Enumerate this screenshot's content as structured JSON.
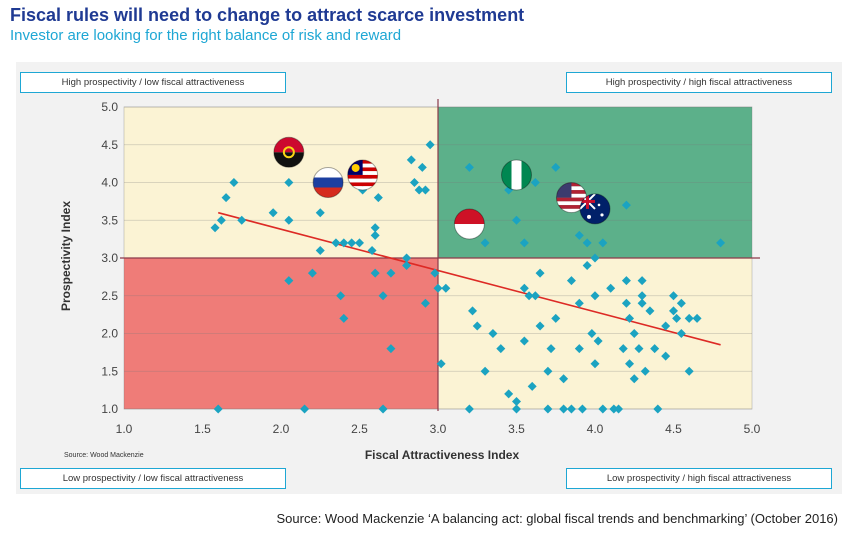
{
  "header": {
    "title": "Fiscal rules will need to change to attract scarce investment",
    "subtitle": "Investor are looking for the right balance of risk and reward"
  },
  "quadrants": {
    "top_left": "High prospectivity / low fiscal attractiveness",
    "top_right": "High prospectivity / high fiscal attractiveness",
    "bottom_left": "Low prospectivity / low fiscal attractiveness",
    "bottom_right": "Low prospectivity / high fiscal attractiveness"
  },
  "source_small": "Source: Wood Mackenzie",
  "source_note": "Source: Wood Mackenzie ‘A balancing act: global fiscal trends and benchmarking’ (October 2016)",
  "colors": {
    "top_left_fill": "#fbf3d4",
    "top_right_fill": "#5cb08a",
    "bottom_left_fill": "#ef7c78",
    "bottom_right_fill": "#fbf3d4",
    "points": "#1ba3c1",
    "trend": "#dd2a25",
    "divider": "#8c3a4a",
    "axis_label": "#333333"
  },
  "chart_data": {
    "type": "scatter",
    "xlabel": "Fiscal Attractiveness Index",
    "ylabel": "Prospectivity Index",
    "xlim": [
      1.0,
      5.0
    ],
    "ylim": [
      1.0,
      5.0
    ],
    "xticks": [
      "1.0",
      "1.5",
      "2.0",
      "2.5",
      "3.0",
      "3.5",
      "4.0",
      "4.5",
      "5.0"
    ],
    "yticks": [
      "1.0",
      "1.5",
      "2.0",
      "2.5",
      "3.0",
      "3.5",
      "4.0",
      "4.5",
      "5.0"
    ],
    "quadrant_split": {
      "x": 3.0,
      "y": 3.0
    },
    "trendline": [
      [
        1.6,
        3.6
      ],
      [
        4.8,
        1.85
      ]
    ],
    "flags": [
      {
        "icon": "angola-flag-icon",
        "x": 2.05,
        "y": 4.4
      },
      {
        "icon": "russia-flag-icon",
        "x": 2.3,
        "y": 4.0
      },
      {
        "icon": "malaysia-flag-icon",
        "x": 2.52,
        "y": 4.1
      },
      {
        "icon": "indonesia-flag-icon",
        "x": 3.2,
        "y": 3.45
      },
      {
        "icon": "nigeria-flag-icon",
        "x": 3.5,
        "y": 4.1
      },
      {
        "icon": "usa-flag-icon",
        "x": 3.85,
        "y": 3.8
      },
      {
        "icon": "australia-flag-icon",
        "x": 4.0,
        "y": 3.65
      }
    ],
    "points": [
      [
        1.6,
        1.0
      ],
      [
        1.58,
        3.4
      ],
      [
        1.62,
        3.5
      ],
      [
        1.65,
        3.8
      ],
      [
        1.7,
        4.0
      ],
      [
        1.75,
        3.5
      ],
      [
        1.95,
        3.6
      ],
      [
        2.05,
        3.5
      ],
      [
        2.05,
        2.7
      ],
      [
        2.05,
        4.0
      ],
      [
        2.15,
        1.0
      ],
      [
        2.2,
        2.8
      ],
      [
        2.25,
        3.6
      ],
      [
        2.25,
        3.1
      ],
      [
        2.3,
        3.9
      ],
      [
        2.35,
        3.2
      ],
      [
        2.38,
        2.5
      ],
      [
        2.4,
        2.2
      ],
      [
        2.4,
        3.2
      ],
      [
        2.45,
        3.2
      ],
      [
        2.5,
        3.2
      ],
      [
        2.52,
        3.9
      ],
      [
        2.55,
        4.05
      ],
      [
        2.58,
        3.1
      ],
      [
        2.6,
        3.4
      ],
      [
        2.6,
        3.3
      ],
      [
        2.6,
        2.8
      ],
      [
        2.62,
        3.8
      ],
      [
        2.65,
        2.5
      ],
      [
        2.65,
        1.0
      ],
      [
        2.7,
        2.8
      ],
      [
        2.7,
        1.8
      ],
      [
        2.8,
        3.0
      ],
      [
        2.8,
        2.9
      ],
      [
        2.83,
        4.3
      ],
      [
        2.85,
        4.0
      ],
      [
        2.88,
        3.9
      ],
      [
        2.9,
        4.2
      ],
      [
        2.92,
        2.4
      ],
      [
        2.92,
        3.9
      ],
      [
        2.95,
        4.5
      ],
      [
        2.98,
        2.8
      ],
      [
        3.0,
        2.6
      ],
      [
        3.02,
        1.6
      ],
      [
        3.05,
        2.6
      ],
      [
        3.2,
        4.2
      ],
      [
        3.2,
        1.0
      ],
      [
        3.22,
        2.3
      ],
      [
        3.25,
        2.1
      ],
      [
        3.3,
        1.5
      ],
      [
        3.3,
        3.2
      ],
      [
        3.35,
        2.0
      ],
      [
        3.4,
        1.8
      ],
      [
        3.45,
        1.2
      ],
      [
        3.45,
        3.9
      ],
      [
        3.5,
        1.0
      ],
      [
        3.5,
        1.1
      ],
      [
        3.5,
        3.5
      ],
      [
        3.55,
        2.6
      ],
      [
        3.55,
        1.9
      ],
      [
        3.55,
        3.2
      ],
      [
        3.58,
        2.5
      ],
      [
        3.6,
        1.3
      ],
      [
        3.62,
        4.0
      ],
      [
        3.62,
        2.5
      ],
      [
        3.65,
        2.8
      ],
      [
        3.65,
        2.1
      ],
      [
        3.7,
        1.0
      ],
      [
        3.7,
        1.5
      ],
      [
        3.72,
        1.8
      ],
      [
        3.75,
        4.2
      ],
      [
        3.75,
        2.2
      ],
      [
        3.8,
        1.0
      ],
      [
        3.8,
        1.4
      ],
      [
        3.85,
        2.7
      ],
      [
        3.85,
        1.0
      ],
      [
        3.9,
        3.3
      ],
      [
        3.9,
        2.4
      ],
      [
        3.9,
        1.8
      ],
      [
        3.92,
        1.0
      ],
      [
        3.95,
        2.9
      ],
      [
        3.95,
        3.2
      ],
      [
        3.98,
        2.0
      ],
      [
        4.0,
        1.6
      ],
      [
        4.0,
        2.5
      ],
      [
        4.0,
        3.0
      ],
      [
        4.02,
        1.9
      ],
      [
        4.05,
        3.2
      ],
      [
        4.05,
        1.0
      ],
      [
        4.1,
        2.6
      ],
      [
        4.12,
        1.0
      ],
      [
        4.15,
        1.0
      ],
      [
        4.18,
        1.8
      ],
      [
        4.2,
        2.4
      ],
      [
        4.2,
        2.7
      ],
      [
        4.2,
        3.7
      ],
      [
        4.22,
        2.2
      ],
      [
        4.22,
        1.6
      ],
      [
        4.25,
        1.4
      ],
      [
        4.25,
        2.0
      ],
      [
        4.28,
        1.8
      ],
      [
        4.3,
        2.4
      ],
      [
        4.3,
        2.7
      ],
      [
        4.3,
        2.5
      ],
      [
        4.32,
        1.5
      ],
      [
        4.35,
        2.3
      ],
      [
        4.38,
        1.8
      ],
      [
        4.4,
        1.0
      ],
      [
        4.45,
        2.1
      ],
      [
        4.45,
        1.7
      ],
      [
        4.5,
        2.5
      ],
      [
        4.5,
        2.3
      ],
      [
        4.52,
        2.2
      ],
      [
        4.55,
        2.4
      ],
      [
        4.55,
        2.0
      ],
      [
        4.6,
        2.2
      ],
      [
        4.6,
        1.5
      ],
      [
        4.65,
        2.2
      ],
      [
        4.8,
        3.2
      ]
    ]
  }
}
